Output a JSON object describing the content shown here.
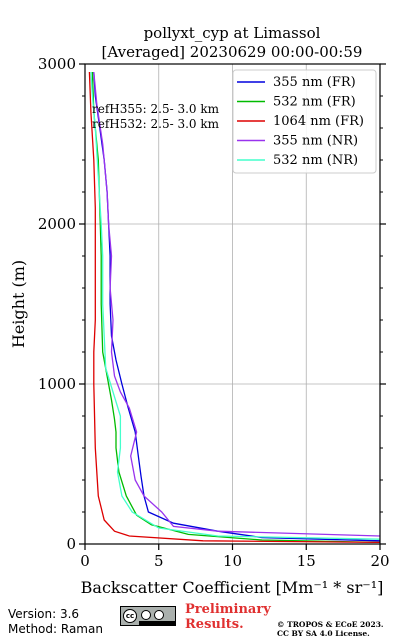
{
  "chart_data": {
    "type": "line",
    "title": "pollyxt_cyp at Limassol",
    "subtitle": "[Averaged] 20230629 00:00-00:59",
    "xlabel": "Backscatter Coefficient [Mm⁻¹ * sr⁻¹]",
    "ylabel": "Height (m)",
    "xlim": [
      0,
      20
    ],
    "ylim": [
      0,
      3000
    ],
    "xticks": [
      "0",
      "5",
      "10",
      "15",
      "20"
    ],
    "yticks": [
      "0",
      "1000",
      "2000",
      "3000"
    ],
    "grid": true,
    "legend_position": "top-right",
    "annotations": [
      "refH355:  2.5- 3.0 km",
      "refH532:  2.5- 3.0 km"
    ],
    "series": [
      {
        "name": "355 nm (FR)",
        "color": "#0000dd",
        "points": [
          [
            20,
            20
          ],
          [
            12,
            40
          ],
          [
            9,
            80
          ],
          [
            6,
            130
          ],
          [
            4.3,
            200
          ],
          [
            4,
            300
          ],
          [
            3.8,
            420
          ],
          [
            3.6,
            560
          ],
          [
            3.4,
            700
          ],
          [
            2.9,
            860
          ],
          [
            2.5,
            1000
          ],
          [
            2.1,
            1150
          ],
          [
            1.8,
            1300
          ],
          [
            1.7,
            1500
          ],
          [
            1.7,
            1800
          ],
          [
            1.6,
            2000
          ],
          [
            1.5,
            2200
          ],
          [
            1.3,
            2400
          ],
          [
            1.0,
            2600
          ],
          [
            0.7,
            2800
          ],
          [
            0.6,
            2950
          ]
        ]
      },
      {
        "name": "532 nm (FR)",
        "color": "#00bb00",
        "points": [
          [
            20,
            10
          ],
          [
            12,
            25
          ],
          [
            7,
            60
          ],
          [
            4.5,
            120
          ],
          [
            3.5,
            180
          ],
          [
            2.8,
            300
          ],
          [
            2.3,
            450
          ],
          [
            2.1,
            600
          ],
          [
            2.1,
            700
          ],
          [
            2.0,
            780
          ],
          [
            1.8,
            900
          ],
          [
            1.5,
            1050
          ],
          [
            1.2,
            1200
          ],
          [
            1.1,
            1500
          ],
          [
            1.1,
            1800
          ],
          [
            1.0,
            2100
          ],
          [
            0.9,
            2400
          ],
          [
            0.6,
            2700
          ],
          [
            0.5,
            2950
          ]
        ]
      },
      {
        "name": "1064 nm (FR)",
        "color": "#dd0000",
        "points": [
          [
            20,
            10
          ],
          [
            8,
            20
          ],
          [
            3,
            50
          ],
          [
            2.0,
            80
          ],
          [
            1.3,
            150
          ],
          [
            0.9,
            300
          ],
          [
            0.7,
            600
          ],
          [
            0.6,
            1000
          ],
          [
            0.6,
            1200
          ],
          [
            0.7,
            1400
          ],
          [
            0.7,
            1800
          ],
          [
            0.7,
            2100
          ],
          [
            0.6,
            2400
          ],
          [
            0.4,
            2700
          ],
          [
            0.3,
            2950
          ]
        ]
      },
      {
        "name": "355 nm (NR)",
        "color": "#9933ee",
        "points": [
          [
            20,
            50
          ],
          [
            9,
            80
          ],
          [
            6,
            110
          ],
          [
            5.2,
            200
          ],
          [
            4.0,
            300
          ],
          [
            3.4,
            400
          ],
          [
            3.1,
            550
          ],
          [
            3.5,
            700
          ],
          [
            3.0,
            850
          ],
          [
            2.4,
            950
          ],
          [
            2.0,
            1050
          ],
          [
            1.8,
            1200
          ],
          [
            1.9,
            1400
          ],
          [
            1.7,
            1600
          ],
          [
            1.8,
            1800
          ],
          [
            1.6,
            2000
          ],
          [
            1.5,
            2200
          ],
          [
            1.2,
            2500
          ],
          [
            0.8,
            2750
          ],
          [
            0.6,
            2950
          ]
        ]
      },
      {
        "name": "532 nm (NR)",
        "color": "#44ffcc",
        "points": [
          [
            20,
            30
          ],
          [
            9,
            50
          ],
          [
            5,
            100
          ],
          [
            3.2,
            200
          ],
          [
            2.5,
            300
          ],
          [
            2.2,
            450
          ],
          [
            2.4,
            600
          ],
          [
            2.4,
            800
          ],
          [
            1.9,
            950
          ],
          [
            1.4,
            1100
          ],
          [
            1.3,
            1300
          ],
          [
            1.2,
            1500
          ],
          [
            1.2,
            1800
          ],
          [
            1.1,
            2000
          ],
          [
            0.9,
            2300
          ],
          [
            0.7,
            2600
          ],
          [
            0.5,
            2800
          ],
          [
            0.4,
            2950
          ]
        ]
      }
    ]
  },
  "footer": {
    "version": "Version: 3.6",
    "method": "Method: Raman",
    "prelim_line1": "Preliminary",
    "prelim_line2": "Results.",
    "license_line1": "© TROPOS & ECoE 2023.",
    "license_line2": "CC BY SA 4.0 License."
  }
}
